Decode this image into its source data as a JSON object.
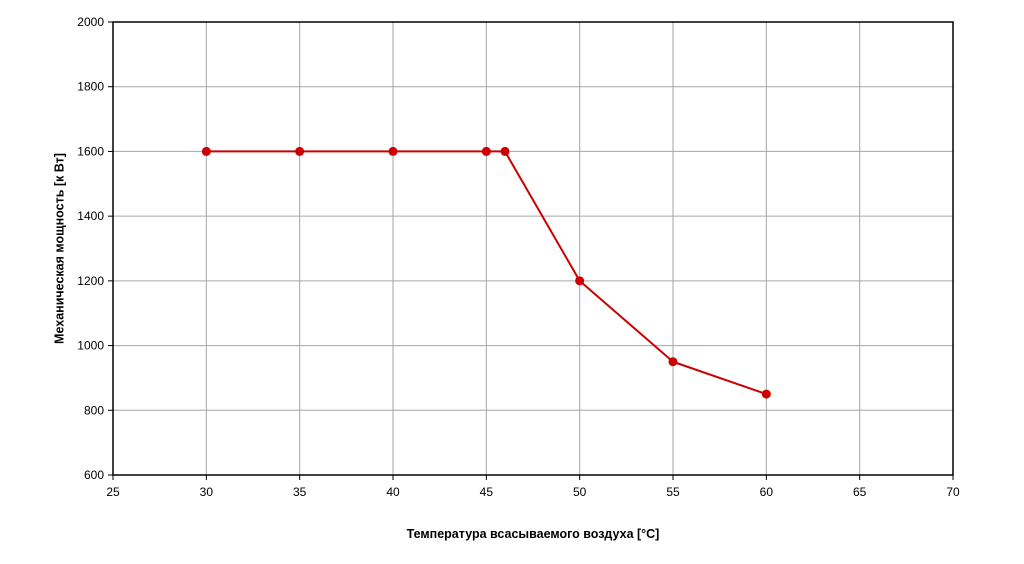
{
  "chart_data": {
    "type": "line",
    "title": "",
    "xlabel": "Температура всасываемого воздуха [°C]",
    "ylabel": "Механическая мощность [к Вт]",
    "xlim": [
      25,
      70
    ],
    "ylim": [
      600,
      2000
    ],
    "x_ticks": [
      "25",
      "30",
      "35",
      "40",
      "45",
      "50",
      "55",
      "60",
      "65",
      "70"
    ],
    "y_ticks": [
      "600",
      "800",
      "1000",
      "1200",
      "1400",
      "1600",
      "1800",
      "2000"
    ],
    "grid": true,
    "legend": "none",
    "series": [
      {
        "x": [
          30,
          35,
          40,
          45,
          46,
          50,
          55,
          60
        ],
        "y": [
          1600,
          1600,
          1600,
          1600,
          1600,
          1200,
          950,
          850
        ],
        "color": "#cc0000",
        "marker": "circle"
      }
    ]
  }
}
